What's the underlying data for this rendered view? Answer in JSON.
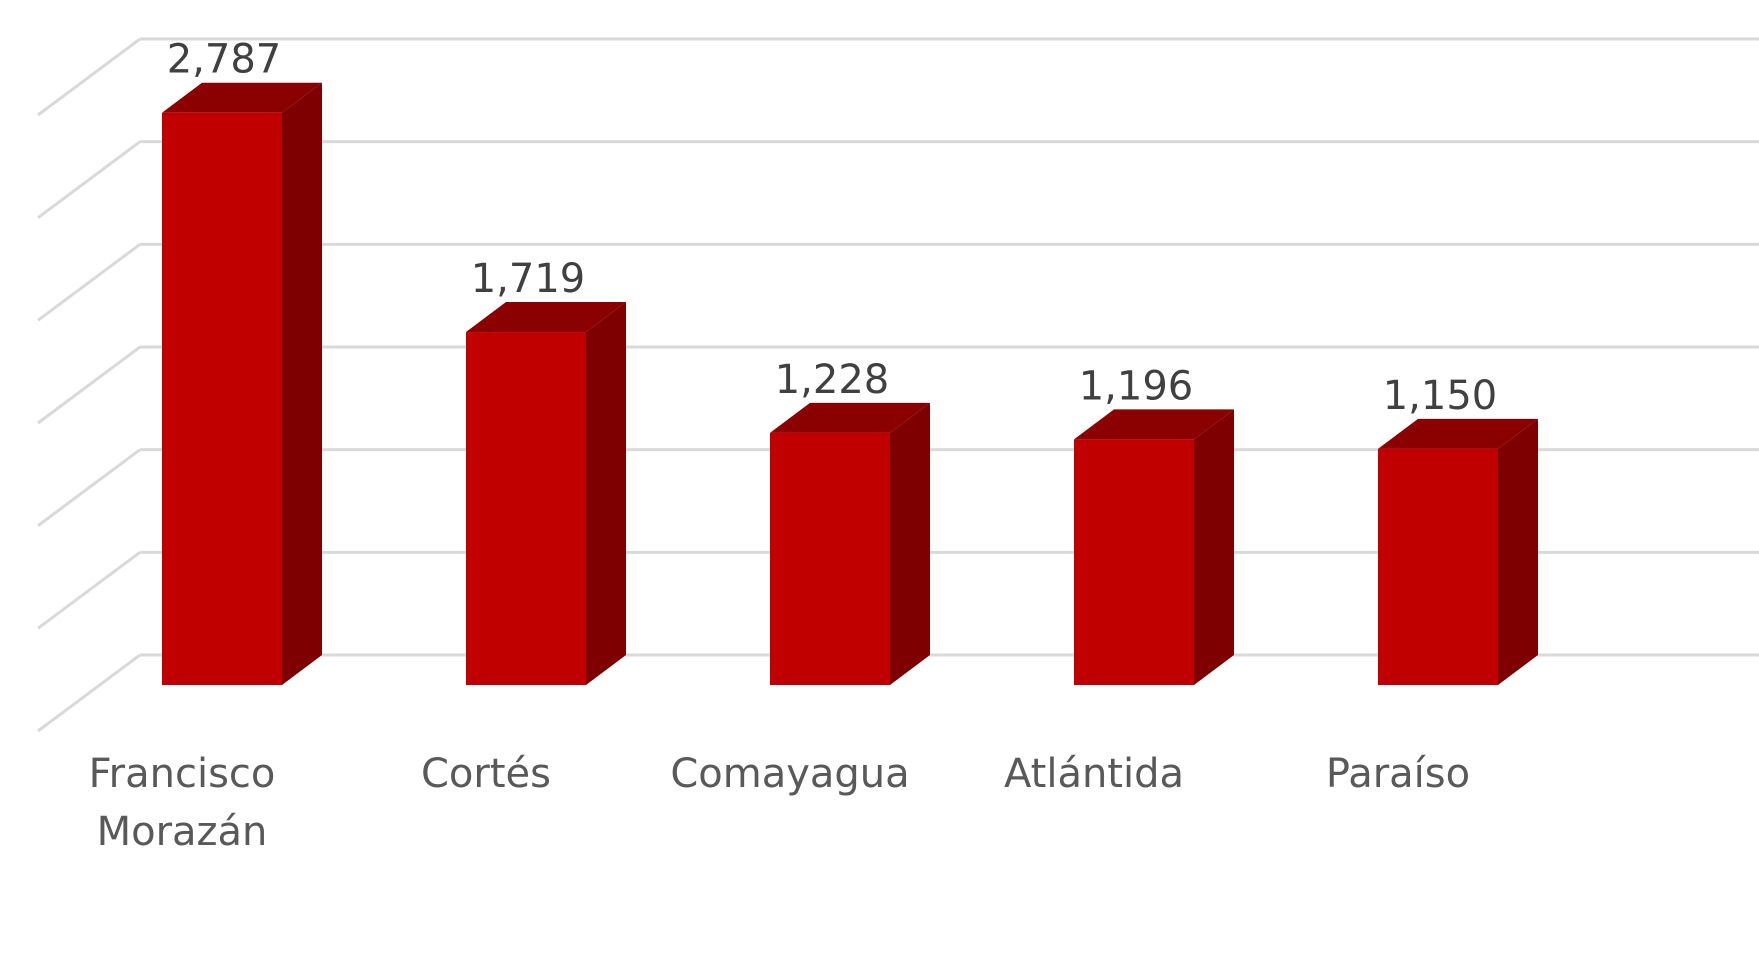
{
  "chart_data": {
    "type": "bar3d",
    "categories": [
      "Francisco Morazán",
      "Cortés",
      "Comayagua",
      "Atlántida",
      "Paraíso"
    ],
    "values": [
      2787,
      1719,
      1228,
      1196,
      1150
    ],
    "value_labels": [
      "2,787",
      "1,719",
      "1,228",
      "1,196",
      "1,150"
    ],
    "color": "#c00000",
    "ylim": [
      0,
      3000
    ],
    "yticks": [
      0,
      500,
      1000,
      1500,
      2000,
      2500,
      3000
    ],
    "grid": true
  }
}
